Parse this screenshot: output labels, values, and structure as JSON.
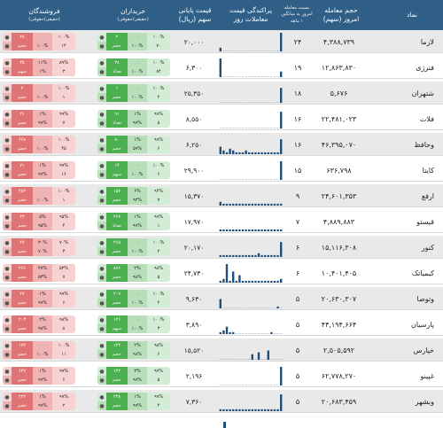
{
  "header": {
    "name": "نماد",
    "volume_l1": "حجم معامله",
    "volume_l2": "امروز (سهم)",
    "ratio_l1": "نسبت معامله",
    "ratio_l2": "امروز به میانگین",
    "ratio_l3": "۱ ماهه",
    "dist_l1": "پراکندگی قیمت",
    "dist_l2": "معاملات روز",
    "price_l1": "قیمت پایانی",
    "price_l2": "سهم (ریال)",
    "buyers_l1": "خریداران",
    "buyers_l2": "(حقیقی/حقوقی)",
    "sellers_l1": "فروشندگان",
    "sellers_l2": "(حقیقی/حقوقی)"
  },
  "colors": {
    "header": "#2f5f86",
    "bar": "#1f4e79",
    "buy": "#4caf50",
    "sell": "#e07373"
  },
  "rows": [
    {
      "name": "لازما",
      "volume": "۴,۳۸۸,۷۳۹",
      "ratio": "۲۴",
      "price": "۲۰,۰۰۰",
      "bars": [
        2,
        0,
        0,
        0,
        0,
        0,
        0,
        0,
        0,
        0,
        0,
        0,
        0,
        0,
        0,
        0,
        0,
        0,
        0,
        10
      ],
      "buy_l1": [
        "۱۰۰%",
        "۰",
        "۲"
      ],
      "buy_l2": [
        "۷۰",
        "۱۰۰%",
        "حجم"
      ],
      "sell_l1": [
        "۱۰۰%",
        "۰",
        "۳۸"
      ],
      "sell_l2": [
        "۱۴",
        "۱۰۰%",
        "حجم"
      ]
    },
    {
      "name": "فنرژی",
      "volume": "۱۲,۸۶۳,۸۳۰",
      "ratio": "۱۹",
      "price": "۶,۳۰۰",
      "bars": [
        10,
        0,
        0,
        0,
        0,
        0,
        0,
        0,
        0,
        0,
        0,
        0,
        0,
        0,
        0,
        0,
        0,
        0,
        0,
        3
      ],
      "buy_l1": [
        "۱۰۰%",
        "۰",
        "۳۸"
      ],
      "buy_l2": [
        "۸۴",
        "۱۰۰%",
        "تعداد"
      ],
      "sell_l1": [
        "۸۹%",
        "۱۱%",
        "۳۵"
      ],
      "sell_l2": [
        "۳",
        "۱%",
        "سهم"
      ]
    },
    {
      "name": "شتهران",
      "volume": "۵,۶۷۶",
      "ratio": "۱۸",
      "price": "۲۵,۳۵۰",
      "bars": [
        0,
        0,
        0,
        0,
        0,
        0,
        0,
        0,
        0,
        0,
        0,
        0,
        0,
        0,
        0,
        0,
        0,
        0,
        0,
        8
      ],
      "buy_l1": [
        "۱۰۰%",
        "۰",
        "۱"
      ],
      "buy_l2": [
        "۲",
        "۱۰۰%",
        "حجم"
      ],
      "sell_l1": [
        "۱۰۰%",
        "۰",
        "۲"
      ],
      "sell_l2": [
        "۱",
        "۱۰۰%",
        "حجم"
      ]
    },
    {
      "name": "فلات",
      "volume": "۲۲,۴۸۱,۰۲۳",
      "ratio": "۱۶",
      "price": "۸,۵۵۰",
      "bars": [
        0,
        0,
        0,
        0,
        0,
        0,
        0,
        0,
        0,
        0,
        0,
        0,
        0,
        0,
        0,
        0,
        0,
        0,
        0,
        9
      ],
      "buy_l1": [
        "۹۹%",
        "۱%",
        "۹۱"
      ],
      "buy_l2": [
        "۵",
        "۹۷%",
        "تعداد"
      ],
      "sell_l1": [
        "۹۹%",
        "۱%",
        "۲۶"
      ],
      "sell_l2": [
        "۷",
        "۹۹%",
        "حجم"
      ]
    },
    {
      "name": "وحافظ",
      "volume": "۴۶,۳۹۵,۰۷۰",
      "ratio": "۱۶",
      "price": "۶,۲۵۰",
      "bars": [
        4,
        2,
        1,
        3,
        2,
        1,
        1,
        1,
        2,
        1,
        1,
        1,
        1,
        1,
        1,
        1,
        1,
        1,
        1,
        8
      ],
      "buy_l1": [
        "۹۹%",
        "۱%",
        "۸۰"
      ],
      "buy_l2": [
        "۶",
        "۵۹%",
        "حجم"
      ],
      "sell_l1": [
        "۱۰۰%",
        "۰",
        "۶۶۸"
      ],
      "sell_l2": [
        "۴۵",
        "۱۰۰%",
        "حجم"
      ]
    },
    {
      "name": "کایتا",
      "volume": "۶۳۶,۷۹۸",
      "ratio": "۱۵",
      "price": "۲۹,۹۰۰",
      "bars": [
        0,
        0,
        0,
        0,
        0,
        0,
        0,
        0,
        0,
        0,
        0,
        0,
        0,
        0,
        0,
        0,
        0,
        0,
        0,
        10
      ],
      "buy_l1": [
        "۱۰۰%",
        "۰",
        "۱۴"
      ],
      "buy_l2": [
        "۶",
        "۱۰۰%",
        "سهم"
      ],
      "sell_l1": [
        "۹۹%",
        "۱%",
        "۷۱"
      ],
      "sell_l2": [
        "۱۶",
        "۹۹%",
        "حجم"
      ]
    },
    {
      "name": "ارفع",
      "volume": "۲۴,۶۰۱,۳۵۳",
      "ratio": "۹",
      "price": "۱۵,۳۷۰",
      "bars": [
        2,
        1,
        1,
        1,
        1,
        1,
        1,
        1,
        1,
        1,
        1,
        1,
        1,
        1,
        1,
        1,
        1,
        1,
        1,
        1
      ],
      "buy_l1": [
        "۹۴%",
        "۶%",
        "۱۵۷"
      ],
      "buy_l2": [
        "۷",
        "۹۲%",
        "حجم"
      ],
      "sell_l1": [
        "۱۰۰%",
        "۰",
        "۲۵۲"
      ],
      "sell_l2": [
        "۱",
        "۱۰۰%",
        "حجم"
      ]
    },
    {
      "name": "قیستو",
      "volume": "۴,۸۸۹,۸۸۳",
      "ratio": "۷",
      "price": "۱۷,۹۷۰",
      "bars": [
        1,
        1,
        1,
        1,
        1,
        1,
        1,
        1,
        1,
        1,
        1,
        1,
        1,
        1,
        1,
        1,
        1,
        1,
        1,
        1
      ],
      "buy_l1": [
        "۹۹%",
        "۱%",
        "۲۶۷"
      ],
      "buy_l2": [
        "۱",
        "۹۹%",
        "تعداد"
      ],
      "sell_l1": [
        "۹۵%",
        "۵%",
        "۲۳"
      ],
      "sell_l2": [
        "۴",
        "۹۵%",
        "حجم"
      ]
    },
    {
      "name": "کنور",
      "volume": "۱۵,۱۱۶,۳۰۸",
      "ratio": "۶",
      "price": "۲۰,۱۷۰",
      "bars": [
        1,
        1,
        1,
        1,
        1,
        1,
        1,
        1,
        1,
        1,
        1,
        1,
        2,
        1,
        1,
        1,
        1,
        1,
        1,
        8
      ],
      "buy_l1": [
        "۱۰۰%",
        "۰",
        "۲۶۵"
      ],
      "buy_l2": [
        "۲",
        "۱۰۰%",
        "حجم"
      ],
      "sell_l1": [
        "۷۰%",
        "۳۰%",
        "۴۷"
      ],
      "sell_l2": [
        "۳",
        "۷۰%",
        "حجم"
      ]
    },
    {
      "name": "کیمیاتک",
      "volume": "۱۰,۴۰۱,۴۰۵",
      "ratio": "۶",
      "price": "۲۴,۷۳۰",
      "bars": [
        1,
        2,
        10,
        1,
        6,
        1,
        4,
        1,
        1,
        1,
        1,
        1,
        1,
        1,
        1,
        1,
        1,
        1,
        1,
        2
      ],
      "buy_l1": [
        "۹۸%",
        "۲%",
        "۸۷۶"
      ],
      "buy_l2": [
        "۵",
        "۹۸%",
        "حجم"
      ],
      "sell_l1": [
        "۵۳%",
        "۴۷%",
        "۲۶۶"
      ],
      "sell_l2": [
        "۷",
        "۵۳%",
        "حجم"
      ]
    },
    {
      "name": "وتوصا",
      "volume": "۲۰,۶۳۰,۳۰۷",
      "ratio": "۵",
      "price": "۹,۶۳۰",
      "bars": [
        5,
        0,
        0,
        0,
        0,
        0,
        0,
        0,
        0,
        0,
        0,
        0,
        0,
        0,
        0,
        0,
        0,
        0,
        1,
        0
      ],
      "buy_l1": [
        "۱۰۰%",
        "۰",
        "۲۰۷"
      ],
      "buy_l2": [
        "۲",
        "۱۰۰%",
        "حجم"
      ],
      "sell_l1": [
        "۹۹%",
        "۱%",
        "۲۷"
      ],
      "sell_l2": [
        "۶",
        "۹۹%",
        "حجم"
      ]
    },
    {
      "name": "پارسیان",
      "volume": "۴۴,۱۹۴,۶۶۴",
      "ratio": "۵",
      "price": "۳,۸۹۰",
      "bars": [
        1,
        2,
        4,
        1,
        1,
        0,
        0,
        0,
        0,
        0,
        0,
        0,
        0,
        0,
        0,
        0,
        1,
        0,
        0,
        0
      ],
      "buy_l1": [
        "۱۰۰%",
        "۰",
        "۱۴۶"
      ],
      "buy_l2": [
        "۳",
        "۱۰۰%",
        "سهم"
      ],
      "sell_l1": [
        "۹۸%",
        "۲%",
        "۲۰۳"
      ],
      "sell_l2": [
        "۸",
        "۹۸%",
        "حجم"
      ]
    },
    {
      "name": "خپارس",
      "volume": "۲,۵۰۵,۵۹۲",
      "ratio": "۵",
      "price": "۱۵,۵۲۰",
      "bars": [
        0,
        0,
        0,
        0,
        0,
        0,
        0,
        0,
        0,
        0,
        3,
        0,
        4,
        0,
        0,
        5,
        0,
        0,
        0,
        0
      ],
      "buy_l1": [
        "۹۸%",
        "۲%",
        "۱۲۴"
      ],
      "buy_l2": [
        "۶",
        "۹۸%",
        "حجم"
      ],
      "sell_l1": [
        "۱۰۰%",
        "۰",
        "۱۷۴"
      ],
      "sell_l2": [
        "۱۱",
        "۱۰۰%",
        "حجم"
      ]
    },
    {
      "name": "غپینو",
      "volume": "۶۲,۷۷۸,۲۷۰",
      "ratio": "۵",
      "price": "۲,۱۹۶",
      "bars": [
        0,
        0,
        0,
        0,
        0,
        0,
        0,
        0,
        0,
        0,
        0,
        0,
        0,
        0,
        0,
        0,
        0,
        0,
        0,
        10
      ],
      "buy_l1": [
        "۹۷%",
        "۳%",
        "۱۴۲"
      ],
      "buy_l2": [
        "۵",
        "۹۷%",
        "حجم"
      ],
      "sell_l1": [
        "۹۹%",
        "۱%",
        "۶۳۷"
      ],
      "sell_l2": [
        "۶",
        "۹۹%",
        "حجم"
      ]
    },
    {
      "name": "وبشهر",
      "volume": "۲۰,۶۸۳,۴۵۹",
      "ratio": "۵",
      "price": "۷,۳۶۰",
      "bars": [
        1,
        1,
        1,
        1,
        1,
        1,
        1,
        1,
        1,
        1,
        1,
        1,
        1,
        1,
        1,
        1,
        1,
        1,
        1,
        9
      ],
      "buy_l1": [
        "۹۹%",
        "۱%",
        "۲۳۸"
      ],
      "buy_l2": [
        "۴",
        "۹۹%",
        "حجم"
      ],
      "sell_l1": [
        "۹۹%",
        "۱%",
        "۲۲۲"
      ],
      "sell_l2": [
        "۲",
        "۹۹%",
        "حجم"
      ]
    }
  ]
}
